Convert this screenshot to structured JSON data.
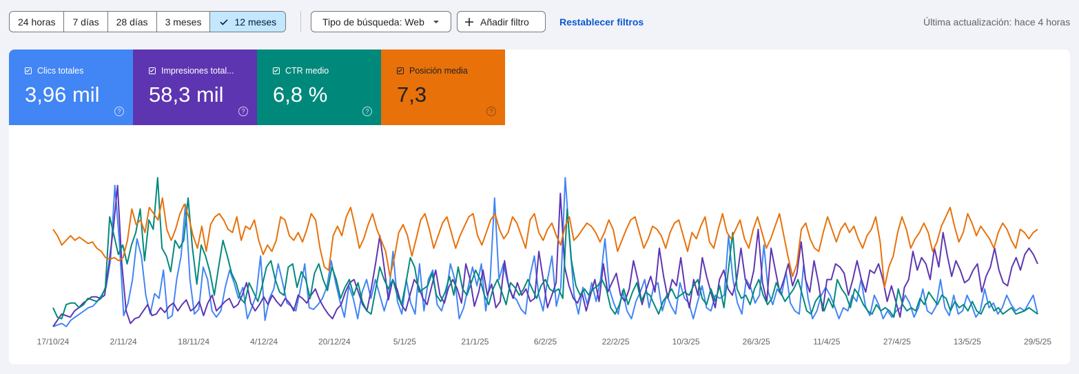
{
  "filters": {
    "ranges": [
      {
        "label": "24 horas",
        "selected": false
      },
      {
        "label": "7 días",
        "selected": false
      },
      {
        "label": "28 días",
        "selected": false
      },
      {
        "label": "3 meses",
        "selected": false
      },
      {
        "label": "12 meses",
        "selected": true
      }
    ],
    "search_type": "Tipo de búsqueda: Web",
    "add_filter": "Añadir filtro",
    "reset": "Restablecer filtros",
    "last_update": "Última actualización: hace 4 horas"
  },
  "metrics": [
    {
      "label": "Clics totales",
      "value": "3,96 mil",
      "color": "#4285f4",
      "checked": true
    },
    {
      "label": "Impresiones total...",
      "value": "58,3 mil",
      "color": "#5e35b1",
      "checked": true
    },
    {
      "label": "CTR medio",
      "value": "6,8 %",
      "color": "#00897b",
      "checked": true
    },
    {
      "label": "Posición media",
      "value": "7,3",
      "color": "#e8710a",
      "checked": true
    }
  ],
  "chart_data": {
    "type": "line",
    "grid": false,
    "legend": "none",
    "date_start": "17/10/24",
    "x_tick_labels": [
      "17/10/24",
      "2/11/24",
      "18/11/24",
      "4/12/24",
      "20/12/24",
      "5/1/25",
      "21/1/25",
      "6/2/25",
      "22/2/25",
      "10/3/25",
      "26/3/25",
      "11/4/25",
      "27/4/25",
      "13/5/25",
      "29/5/25"
    ],
    "x_tick_days": [
      0,
      16,
      32,
      48,
      64,
      80,
      96,
      112,
      128,
      144,
      160,
      176,
      192,
      208,
      224
    ],
    "y_range_relative": [
      0,
      1
    ],
    "series": [
      {
        "name": "Clics totales",
        "color": "#4285f4",
        "values": [
          0.0,
          0.01,
          0.02,
          0.0,
          0.04,
          0.06,
          0.08,
          0.1,
          0.12,
          0.13,
          0.16,
          0.2,
          0.25,
          0.42,
          0.9,
          0.55,
          0.07,
          0.15,
          0.3,
          0.56,
          0.45,
          0.2,
          0.08,
          0.21,
          0.18,
          0.36,
          0.05,
          0.07,
          0.3,
          0.45,
          0.78,
          0.3,
          0.08,
          0.11,
          0.38,
          0.3,
          0.1,
          0.06,
          0.1,
          0.25,
          0.36,
          0.28,
          0.18,
          0.25,
          0.05,
          0.12,
          0.2,
          0.45,
          0.04,
          0.18,
          0.24,
          0.4,
          0.28,
          0.15,
          0.13,
          0.1,
          0.24,
          0.4,
          0.12,
          0.11,
          0.14,
          0.18,
          0.25,
          0.42,
          0.28,
          0.16,
          0.06,
          0.26,
          0.18,
          0.05,
          0.22,
          0.3,
          0.18,
          0.3,
          0.2,
          0.1,
          0.2,
          0.48,
          0.16,
          0.08,
          0.3,
          0.15,
          0.08,
          0.4,
          0.1,
          0.3,
          0.36,
          0.14,
          0.1,
          0.2,
          0.4,
          0.3,
          0.05,
          0.12,
          0.25,
          0.38,
          0.26,
          0.4,
          0.1,
          0.3,
          0.82,
          0.3,
          0.4,
          0.28,
          0.2,
          0.17,
          0.11,
          0.08,
          0.32,
          0.45,
          0.2,
          0.1,
          0.3,
          0.45,
          0.13,
          0.25,
          0.95,
          0.55,
          0.2,
          0.08,
          0.25,
          0.14,
          0.28,
          0.16,
          0.3,
          0.56,
          0.24,
          0.15,
          0.08,
          0.23,
          0.1,
          0.05,
          0.16,
          0.22,
          0.3,
          0.12,
          0.25,
          0.28,
          0.1,
          0.2,
          0.13,
          0.08,
          0.28,
          0.18,
          0.15,
          0.05,
          0.16,
          0.26,
          0.12,
          0.1,
          0.2,
          0.18,
          0.2,
          0.58,
          0.3,
          0.15,
          0.08,
          0.3,
          0.25,
          0.15,
          0.2,
          0.52,
          0.22,
          0.14,
          0.24,
          0.2,
          0.35,
          0.15,
          0.1,
          0.08,
          0.4,
          0.18,
          0.05,
          0.1,
          0.2,
          0.25,
          0.2,
          0.13,
          0.05,
          0.12,
          0.1,
          0.2,
          0.16,
          0.3,
          0.13,
          0.07,
          0.2,
          0.14,
          0.05,
          0.1,
          0.06,
          0.1,
          0.12,
          0.2,
          0.15,
          0.06,
          0.12,
          0.24,
          0.1,
          0.08,
          0.13,
          0.3,
          0.12,
          0.07,
          0.2,
          0.08,
          0.1,
          0.2,
          0.14,
          0.06,
          0.1,
          0.24,
          0.12,
          0.15,
          0.08,
          0.12,
          0.2,
          0.14,
          0.1,
          0.12,
          0.1,
          0.15,
          0.2,
          0.08
        ]
      },
      {
        "name": "Impresiones totales",
        "color": "#5e35b1",
        "values": [
          0.0,
          0.04,
          0.08,
          0.07,
          0.06,
          0.1,
          0.12,
          0.15,
          0.17,
          0.19,
          0.19,
          0.18,
          0.2,
          0.4,
          0.62,
          0.9,
          0.4,
          0.1,
          0.02,
          0.05,
          0.06,
          0.1,
          0.14,
          0.07,
          0.08,
          0.12,
          0.09,
          0.13,
          0.15,
          0.1,
          0.14,
          0.17,
          0.1,
          0.12,
          0.16,
          0.07,
          0.15,
          0.2,
          0.1,
          0.13,
          0.16,
          0.18,
          0.12,
          0.14,
          0.2,
          0.28,
          0.15,
          0.1,
          0.14,
          0.19,
          0.14,
          0.2,
          0.16,
          0.13,
          0.18,
          0.15,
          0.1,
          0.2,
          0.18,
          0.15,
          0.2,
          0.24,
          0.17,
          0.12,
          0.08,
          0.05,
          0.11,
          0.14,
          0.22,
          0.28,
          0.3,
          0.22,
          0.14,
          0.1,
          0.24,
          0.4,
          0.58,
          0.38,
          0.17,
          0.3,
          0.24,
          0.14,
          0.1,
          0.2,
          0.3,
          0.26,
          0.18,
          0.14,
          0.25,
          0.36,
          0.2,
          0.15,
          0.25,
          0.3,
          0.24,
          0.15,
          0.4,
          0.3,
          0.13,
          0.22,
          0.36,
          0.2,
          0.27,
          0.12,
          0.16,
          0.42,
          0.25,
          0.18,
          0.28,
          0.2,
          0.24,
          0.16,
          0.18,
          0.48,
          0.3,
          0.12,
          0.2,
          0.28,
          0.85,
          0.38,
          0.26,
          0.18,
          0.15,
          0.22,
          0.1,
          0.2,
          0.3,
          0.16,
          0.4,
          0.22,
          0.28,
          0.34,
          0.2,
          0.16,
          0.24,
          0.42,
          0.3,
          0.14,
          0.24,
          0.32,
          0.22,
          0.5,
          0.32,
          0.18,
          0.3,
          0.26,
          0.44,
          0.24,
          0.12,
          0.3,
          0.2,
          0.44,
          0.32,
          0.22,
          0.12,
          0.3,
          0.36,
          0.24,
          0.2,
          0.3,
          0.5,
          0.3,
          0.24,
          0.36,
          0.62,
          0.28,
          0.16,
          0.5,
          0.36,
          0.22,
          0.3,
          0.4,
          0.26,
          0.34,
          0.54,
          0.3,
          0.22,
          0.42,
          0.28,
          0.1,
          0.3,
          0.3,
          0.4,
          0.38,
          0.34,
          0.2,
          0.3,
          0.42,
          0.3,
          0.22,
          0.36,
          0.34,
          0.4,
          0.3,
          0.16,
          0.26,
          0.16,
          0.06,
          0.25,
          0.3,
          0.48,
          0.36,
          0.44,
          0.4,
          0.3,
          0.5,
          0.38,
          0.6,
          0.45,
          0.32,
          0.42,
          0.36,
          0.28,
          0.3,
          0.36,
          0.4,
          0.22,
          0.32,
          0.38,
          0.5,
          0.36,
          0.28,
          0.26,
          0.38,
          0.44,
          0.36,
          0.46,
          0.5,
          0.46,
          0.4
        ]
      },
      {
        "name": "CTR medio",
        "color": "#00897b",
        "values": [
          0.12,
          0.06,
          0.05,
          0.14,
          0.15,
          0.15,
          0.12,
          0.14,
          0.18,
          0.17,
          0.16,
          0.18,
          0.25,
          0.7,
          0.58,
          0.46,
          0.52,
          0.4,
          0.52,
          0.6,
          0.75,
          0.42,
          0.68,
          0.62,
          0.95,
          0.5,
          0.45,
          0.35,
          0.55,
          0.5,
          0.55,
          0.82,
          0.5,
          0.27,
          0.52,
          0.45,
          0.35,
          0.2,
          0.38,
          0.55,
          0.45,
          0.34,
          0.28,
          0.18,
          0.15,
          0.28,
          0.22,
          0.16,
          0.26,
          0.38,
          0.42,
          0.3,
          0.22,
          0.2,
          0.38,
          0.4,
          0.25,
          0.35,
          0.3,
          0.18,
          0.34,
          0.4,
          0.3,
          0.23,
          0.38,
          0.3,
          0.18,
          0.25,
          0.3,
          0.2,
          0.28,
          0.16,
          0.1,
          0.08,
          0.23,
          0.38,
          0.3,
          0.24,
          0.3,
          0.2,
          0.14,
          0.28,
          0.44,
          0.38,
          0.22,
          0.24,
          0.26,
          0.34,
          0.2,
          0.16,
          0.22,
          0.32,
          0.2,
          0.38,
          0.24,
          0.2,
          0.28,
          0.36,
          0.3,
          0.2,
          0.14,
          0.24,
          0.3,
          0.22,
          0.14,
          0.28,
          0.25,
          0.2,
          0.24,
          0.3,
          0.24,
          0.18,
          0.26,
          0.3,
          0.24,
          0.22,
          0.24,
          0.18,
          0.75,
          0.42,
          0.26,
          0.2,
          0.24,
          0.2,
          0.24,
          0.26,
          0.3,
          0.24,
          0.12,
          0.08,
          0.14,
          0.24,
          0.14,
          0.22,
          0.28,
          0.16,
          0.22,
          0.2,
          0.14,
          0.08,
          0.16,
          0.2,
          0.24,
          0.18,
          0.2,
          0.22,
          0.2,
          0.26,
          0.3,
          0.18,
          0.14,
          0.24,
          0.16,
          0.26,
          0.12,
          0.36,
          0.6,
          0.24,
          0.18,
          0.2,
          0.14,
          0.24,
          0.3,
          0.2,
          0.14,
          0.18,
          0.28,
          0.22,
          0.16,
          0.2,
          0.24,
          0.3,
          0.2,
          0.1,
          0.08,
          0.16,
          0.2,
          0.1,
          0.18,
          0.12,
          0.3,
          0.24,
          0.2,
          0.12,
          0.24,
          0.2,
          0.14,
          0.1,
          0.08,
          0.14,
          0.1,
          0.12,
          0.1,
          0.06,
          0.24,
          0.14,
          0.1,
          0.12,
          0.1,
          0.18,
          0.14,
          0.22,
          0.18,
          0.14,
          0.2,
          0.18,
          0.1,
          0.16,
          0.12,
          0.14,
          0.1,
          0.16,
          0.1,
          0.08,
          0.14,
          0.16,
          0.1,
          0.12,
          0.08,
          0.1,
          0.12,
          0.08,
          0.09,
          0.1,
          0.12,
          0.1,
          0.08
        ]
      },
      {
        "name": "Posición media",
        "color": "#e8710a",
        "values": [
          0.62,
          0.58,
          0.52,
          0.55,
          0.58,
          0.55,
          0.57,
          0.55,
          0.53,
          0.54,
          0.5,
          0.48,
          0.44,
          0.43,
          0.44,
          0.42,
          0.44,
          0.55,
          0.75,
          0.65,
          0.68,
          0.6,
          0.76,
          0.72,
          0.68,
          0.82,
          0.62,
          0.55,
          0.62,
          0.72,
          0.78,
          0.7,
          0.58,
          0.5,
          0.64,
          0.48,
          0.65,
          0.7,
          0.72,
          0.68,
          0.62,
          0.6,
          0.7,
          0.55,
          0.64,
          0.62,
          0.68,
          0.55,
          0.46,
          0.52,
          0.48,
          0.55,
          0.7,
          0.68,
          0.58,
          0.55,
          0.6,
          0.54,
          0.62,
          0.72,
          0.68,
          0.5,
          0.38,
          0.36,
          0.58,
          0.64,
          0.58,
          0.7,
          0.76,
          0.64,
          0.5,
          0.56,
          0.65,
          0.72,
          0.62,
          0.55,
          0.48,
          0.32,
          0.44,
          0.6,
          0.65,
          0.58,
          0.45,
          0.56,
          0.68,
          0.72,
          0.62,
          0.5,
          0.58,
          0.66,
          0.7,
          0.6,
          0.5,
          0.58,
          0.64,
          0.7,
          0.72,
          0.58,
          0.52,
          0.6,
          0.68,
          0.72,
          0.62,
          0.56,
          0.6,
          0.7,
          0.66,
          0.58,
          0.5,
          0.68,
          0.72,
          0.6,
          0.55,
          0.62,
          0.66,
          0.58,
          0.52,
          0.64,
          0.7,
          0.55,
          0.58,
          0.62,
          0.66,
          0.64,
          0.6,
          0.54,
          0.6,
          0.68,
          0.62,
          0.48,
          0.55,
          0.62,
          0.68,
          0.7,
          0.6,
          0.5,
          0.56,
          0.64,
          0.62,
          0.58,
          0.5,
          0.6,
          0.66,
          0.68,
          0.58,
          0.48,
          0.6,
          0.56,
          0.64,
          0.7,
          0.54,
          0.5,
          0.62,
          0.72,
          0.6,
          0.56,
          0.62,
          0.68,
          0.56,
          0.5,
          0.62,
          0.7,
          0.6,
          0.5,
          0.56,
          0.64,
          0.72,
          0.58,
          0.44,
          0.32,
          0.4,
          0.62,
          0.66,
          0.56,
          0.5,
          0.48,
          0.6,
          0.7,
          0.62,
          0.54,
          0.62,
          0.66,
          0.6,
          0.64,
          0.56,
          0.5,
          0.58,
          0.62,
          0.7,
          0.54,
          0.25,
          0.38,
          0.45,
          0.6,
          0.7,
          0.62,
          0.5,
          0.56,
          0.6,
          0.66,
          0.6,
          0.48,
          0.54,
          0.64,
          0.7,
          0.76,
          0.64,
          0.54,
          0.6,
          0.72,
          0.66,
          0.58,
          0.64,
          0.6,
          0.56,
          0.5,
          0.6,
          0.66,
          0.62,
          0.55,
          0.5,
          0.62,
          0.6,
          0.56,
          0.6,
          0.62
        ]
      }
    ]
  }
}
